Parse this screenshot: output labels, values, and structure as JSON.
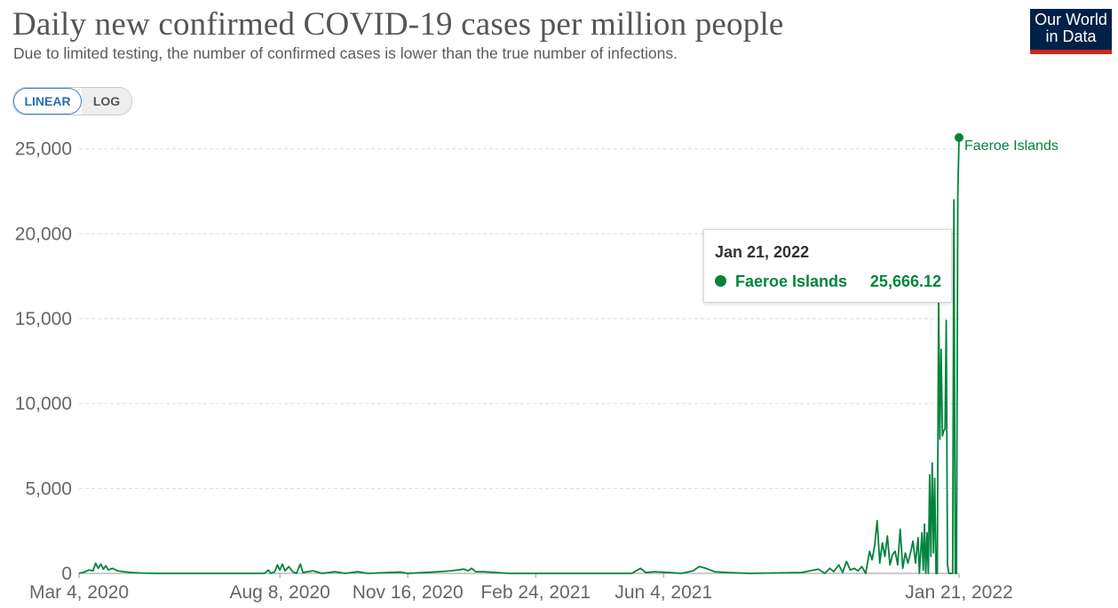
{
  "header": {
    "title": "Daily new confirmed COVID-19 cases per million people",
    "subtitle": "Due to limited testing, the number of confirmed cases is lower than the true number of infections.",
    "logo_line1": "Our World",
    "logo_line2": "in Data"
  },
  "controls": {
    "linear_label": "LINEAR",
    "log_label": "LOG",
    "selected": "LINEAR"
  },
  "tooltip": {
    "date": "Jan 21, 2022",
    "series_name": "Faeroe Islands",
    "value": "25,666.12"
  },
  "colors": {
    "series": "#00843d",
    "grid": "#dddddd",
    "tick_text": "#666666",
    "logo_bg": "#002147",
    "logo_accent": "#ce261e",
    "toggle_active": "#2a6eb4"
  },
  "chart_data": {
    "type": "line",
    "title": "Daily new confirmed COVID-19 cases per million people",
    "xlabel": "",
    "ylabel": "",
    "ylim": [
      0,
      25666.12
    ],
    "yticks": [
      0,
      5000,
      10000,
      15000,
      20000,
      25000
    ],
    "ytick_labels": [
      "0",
      "5,000",
      "10,000",
      "15,000",
      "20,000",
      "25,000"
    ],
    "xlim": [
      "2020-03-04",
      "2022-01-21"
    ],
    "xticks": [
      "2020-03-04",
      "2020-08-08",
      "2020-11-16",
      "2021-02-24",
      "2021-06-04",
      "2022-01-21"
    ],
    "xtick_labels": [
      "Mar 4, 2020",
      "Aug 8, 2020",
      "Nov 16, 2020",
      "Feb 24, 2021",
      "Jun 4, 2021",
      "Jan 21, 2022"
    ],
    "grid": "horizontal dashed",
    "legend": "end-of-line label",
    "series": [
      {
        "name": "Faeroe Islands",
        "color": "#00843d",
        "points": [
          [
            "2020-03-04",
            0
          ],
          [
            "2020-03-08",
            80
          ],
          [
            "2020-03-12",
            200
          ],
          [
            "2020-03-15",
            150
          ],
          [
            "2020-03-17",
            600
          ],
          [
            "2020-03-19",
            300
          ],
          [
            "2020-03-21",
            550
          ],
          [
            "2020-03-23",
            250
          ],
          [
            "2020-03-25",
            450
          ],
          [
            "2020-03-27",
            200
          ],
          [
            "2020-03-30",
            300
          ],
          [
            "2020-04-03",
            150
          ],
          [
            "2020-04-08",
            100
          ],
          [
            "2020-04-14",
            50
          ],
          [
            "2020-04-22",
            20
          ],
          [
            "2020-05-05",
            0
          ],
          [
            "2020-07-27",
            0
          ],
          [
            "2020-07-30",
            200
          ],
          [
            "2020-08-01",
            0
          ],
          [
            "2020-08-04",
            100
          ],
          [
            "2020-08-06",
            500
          ],
          [
            "2020-08-08",
            200
          ],
          [
            "2020-08-10",
            550
          ],
          [
            "2020-08-12",
            150
          ],
          [
            "2020-08-15",
            400
          ],
          [
            "2020-08-18",
            100
          ],
          [
            "2020-08-21",
            0
          ],
          [
            "2020-08-24",
            550
          ],
          [
            "2020-08-26",
            50
          ],
          [
            "2020-09-03",
            150
          ],
          [
            "2020-09-10",
            0
          ],
          [
            "2020-09-20",
            100
          ],
          [
            "2020-09-28",
            0
          ],
          [
            "2020-10-08",
            100
          ],
          [
            "2020-10-16",
            0
          ],
          [
            "2020-11-10",
            80
          ],
          [
            "2020-11-16",
            0
          ],
          [
            "2020-12-10",
            100
          ],
          [
            "2020-12-20",
            150
          ],
          [
            "2020-12-30",
            250
          ],
          [
            "2021-01-02",
            150
          ],
          [
            "2021-01-05",
            300
          ],
          [
            "2021-01-08",
            100
          ],
          [
            "2021-01-15",
            100
          ],
          [
            "2021-02-03",
            0
          ],
          [
            "2021-05-10",
            0
          ],
          [
            "2021-05-17",
            300
          ],
          [
            "2021-05-21",
            50
          ],
          [
            "2021-05-28",
            100
          ],
          [
            "2021-06-08",
            50
          ],
          [
            "2021-06-18",
            0
          ],
          [
            "2021-06-27",
            150
          ],
          [
            "2021-07-02",
            400
          ],
          [
            "2021-07-07",
            300
          ],
          [
            "2021-07-14",
            100
          ],
          [
            "2021-07-24",
            50
          ],
          [
            "2021-08-10",
            0
          ],
          [
            "2021-09-20",
            50
          ],
          [
            "2021-10-03",
            250
          ],
          [
            "2021-10-08",
            0
          ],
          [
            "2021-10-12",
            300
          ],
          [
            "2021-10-15",
            100
          ],
          [
            "2021-10-19",
            500
          ],
          [
            "2021-10-22",
            50
          ],
          [
            "2021-10-25",
            700
          ],
          [
            "2021-10-28",
            200
          ],
          [
            "2021-10-31",
            300
          ],
          [
            "2021-11-03",
            150
          ],
          [
            "2021-11-06",
            400
          ],
          [
            "2021-11-09",
            0
          ],
          [
            "2021-11-12",
            1300
          ],
          [
            "2021-11-14",
            800
          ],
          [
            "2021-11-16",
            1600
          ],
          [
            "2021-11-18",
            3100
          ],
          [
            "2021-11-20",
            600
          ],
          [
            "2021-11-22",
            1800
          ],
          [
            "2021-11-24",
            1000
          ],
          [
            "2021-11-26",
            2200
          ],
          [
            "2021-11-28",
            500
          ],
          [
            "2021-11-30",
            1100
          ],
          [
            "2021-12-02",
            1300
          ],
          [
            "2021-12-04",
            500
          ],
          [
            "2021-12-06",
            2600
          ],
          [
            "2021-12-08",
            300
          ],
          [
            "2021-12-10",
            1200
          ],
          [
            "2021-12-12",
            600
          ],
          [
            "2021-12-14",
            1200
          ],
          [
            "2021-12-16",
            1900
          ],
          [
            "2021-12-18",
            600
          ],
          [
            "2021-12-20",
            2100
          ],
          [
            "2021-12-21",
            0
          ],
          [
            "2021-12-23",
            2400
          ],
          [
            "2021-12-24",
            200
          ],
          [
            "2021-12-25",
            2900
          ],
          [
            "2021-12-26",
            0
          ],
          [
            "2021-12-27",
            2400
          ],
          [
            "2021-12-28",
            0
          ],
          [
            "2021-12-29",
            5800
          ],
          [
            "2021-12-30",
            1000
          ],
          [
            "2021-12-31",
            6500
          ],
          [
            "2022-01-01",
            1200
          ],
          [
            "2022-01-02",
            5600
          ],
          [
            "2022-01-03",
            0
          ],
          [
            "2022-01-04",
            0
          ],
          [
            "2022-01-05",
            16200
          ],
          [
            "2022-01-06",
            7900
          ],
          [
            "2022-01-07",
            13200
          ],
          [
            "2022-01-08",
            8100
          ],
          [
            "2022-01-09",
            8400
          ],
          [
            "2022-01-10",
            8500
          ],
          [
            "2022-01-11",
            14900
          ],
          [
            "2022-01-12",
            500
          ],
          [
            "2022-01-13",
            0
          ],
          [
            "2022-01-16",
            0
          ],
          [
            "2022-01-17",
            22000
          ],
          [
            "2022-01-18",
            0
          ],
          [
            "2022-01-19",
            0
          ],
          [
            "2022-01-20",
            22300
          ],
          [
            "2022-01-21",
            25666.12
          ]
        ]
      }
    ]
  }
}
